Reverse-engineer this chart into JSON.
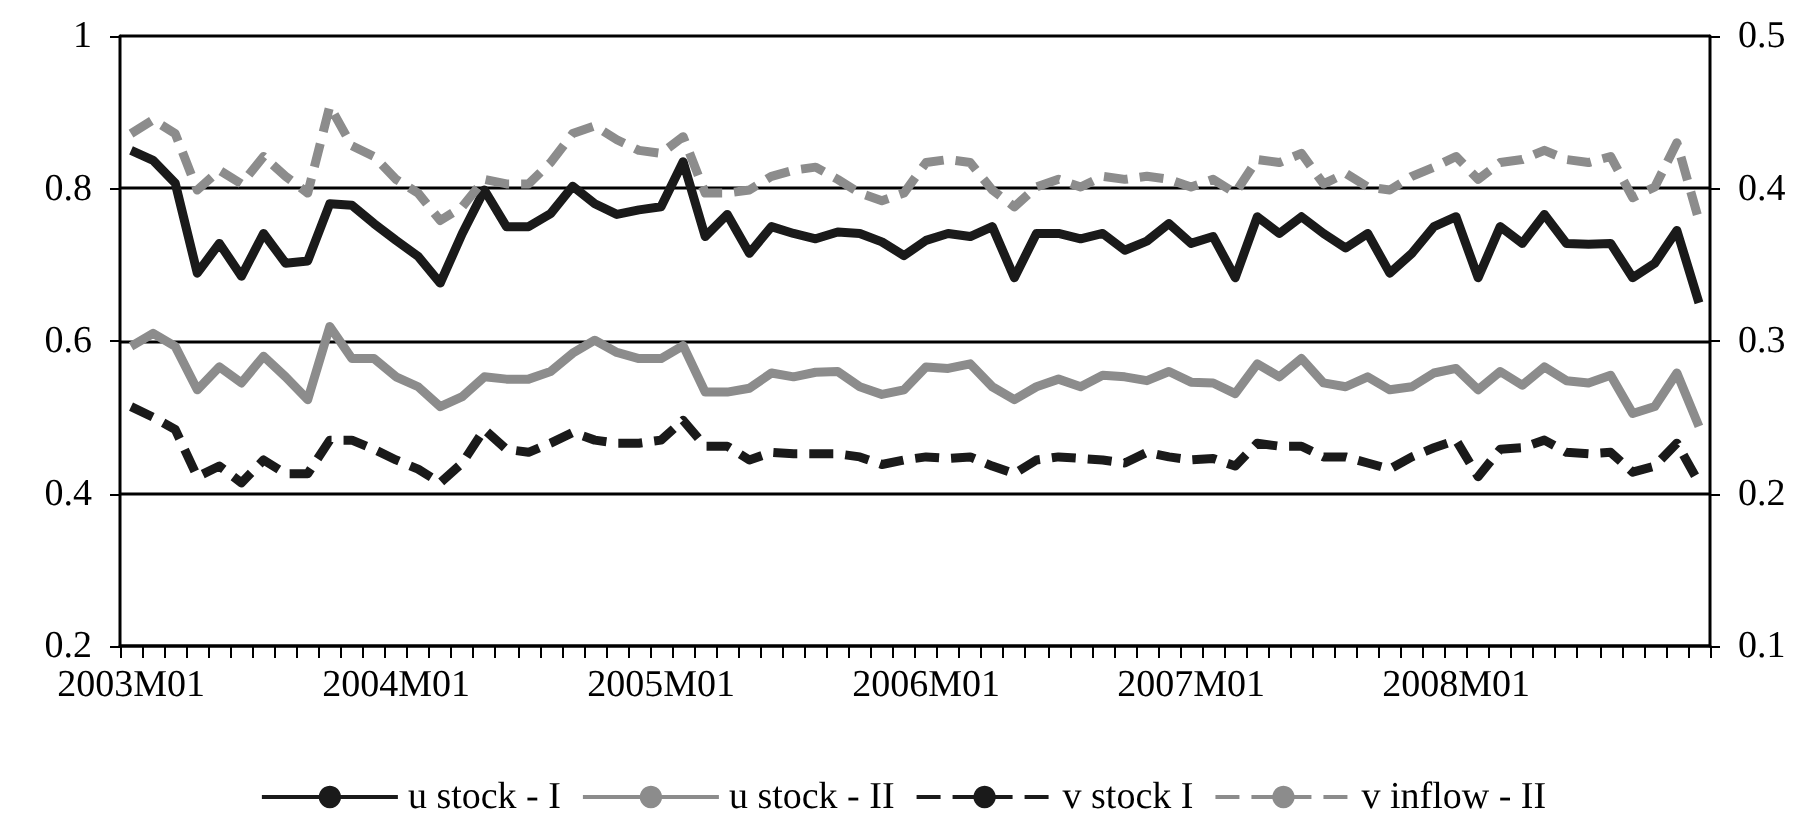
{
  "chart_data": {
    "type": "line",
    "categories": [
      "2003M01",
      null,
      null,
      null,
      null,
      null,
      null,
      null,
      null,
      null,
      null,
      null,
      "2004M01",
      null,
      null,
      null,
      null,
      null,
      null,
      null,
      null,
      null,
      null,
      null,
      "2005M01",
      null,
      null,
      null,
      null,
      null,
      null,
      null,
      null,
      null,
      null,
      null,
      "2006M01",
      null,
      null,
      null,
      null,
      null,
      null,
      null,
      null,
      null,
      null,
      null,
      "2007M01",
      null,
      null,
      null,
      null,
      null,
      null,
      null,
      null,
      null,
      null,
      null,
      "2008M01",
      null,
      null,
      null,
      null,
      null,
      null,
      null,
      null,
      null,
      null,
      null
    ],
    "series": [
      {
        "name": "u stock - I",
        "color": "#1a1a1a",
        "line_style": "solid",
        "values": [
          0.85,
          0.837,
          0.807,
          0.689,
          0.728,
          0.685,
          0.741,
          0.702,
          0.705,
          0.78,
          0.778,
          0.754,
          0.732,
          0.711,
          0.676,
          0.741,
          0.798,
          0.75,
          0.75,
          0.767,
          0.803,
          0.78,
          0.766,
          0.772,
          0.776,
          0.835,
          0.737,
          0.766,
          0.715,
          0.75,
          0.741,
          0.734,
          0.743,
          0.741,
          0.73,
          0.712,
          0.732,
          0.741,
          0.737,
          0.75,
          0.683,
          0.741,
          0.741,
          0.734,
          0.741,
          0.719,
          0.731,
          0.754,
          0.728,
          0.737,
          0.683,
          0.763,
          0.741,
          0.763,
          0.741,
          0.722,
          0.741,
          0.689,
          0.715,
          0.75,
          0.763,
          0.683,
          0.75,
          0.728,
          0.766,
          0.728,
          0.727,
          0.728,
          0.683,
          0.702,
          0.745,
          0.65
        ]
      },
      {
        "name": "u stock - II",
        "color": "#8c8c8c",
        "line_style": "solid",
        "values": [
          0.593,
          0.61,
          0.593,
          0.536,
          0.566,
          0.545,
          0.58,
          0.553,
          0.523,
          0.619,
          0.577,
          0.577,
          0.553,
          0.54,
          0.514,
          0.527,
          0.553,
          0.55,
          0.55,
          0.56,
          0.584,
          0.601,
          0.585,
          0.577,
          0.577,
          0.594,
          0.533,
          0.533,
          0.538,
          0.558,
          0.553,
          0.559,
          0.56,
          0.54,
          0.53,
          0.536,
          0.566,
          0.564,
          0.57,
          0.54,
          0.523,
          0.54,
          0.55,
          0.54,
          0.555,
          0.553,
          0.548,
          0.56,
          0.546,
          0.545,
          0.531,
          0.57,
          0.553,
          0.577,
          0.545,
          0.54,
          0.553,
          0.536,
          0.54,
          0.558,
          0.564,
          0.536,
          0.56,
          0.542,
          0.566,
          0.548,
          0.545,
          0.555,
          0.505,
          0.514,
          0.558,
          0.488
        ]
      },
      {
        "name": "v stock I",
        "color": "#1a1a1a",
        "line_style": "dashed",
        "axis": "y2",
        "values": [
          0.257,
          0.25,
          0.242,
          0.211,
          0.218,
          0.207,
          0.222,
          0.213,
          0.213,
          0.235,
          0.235,
          0.229,
          0.222,
          0.216,
          0.207,
          0.22,
          0.242,
          0.229,
          0.227,
          0.233,
          0.24,
          0.235,
          0.233,
          0.233,
          0.235,
          0.248,
          0.231,
          0.231,
          0.222,
          0.227,
          0.226,
          0.226,
          0.226,
          0.224,
          0.219,
          0.222,
          0.224,
          0.223,
          0.224,
          0.218,
          0.213,
          0.222,
          0.224,
          0.223,
          0.222,
          0.22,
          0.227,
          0.224,
          0.222,
          0.223,
          0.218,
          0.233,
          0.231,
          0.231,
          0.224,
          0.224,
          0.22,
          0.216,
          0.224,
          0.23,
          0.235,
          0.211,
          0.229,
          0.23,
          0.235,
          0.227,
          0.226,
          0.227,
          0.214,
          0.218,
          0.233,
          0.207
        ]
      },
      {
        "name": "v inflow - II",
        "color": "#8c8c8c",
        "line_style": "dashed",
        "axis": "y2",
        "values": [
          0.436,
          0.445,
          0.436,
          0.399,
          0.412,
          0.403,
          0.421,
          0.408,
          0.397,
          0.454,
          0.428,
          0.421,
          0.406,
          0.397,
          0.379,
          0.388,
          0.406,
          0.403,
          0.403,
          0.417,
          0.436,
          0.441,
          0.432,
          0.425,
          0.423,
          0.434,
          0.397,
          0.397,
          0.399,
          0.408,
          0.412,
          0.414,
          0.406,
          0.397,
          0.392,
          0.397,
          0.417,
          0.419,
          0.417,
          0.399,
          0.388,
          0.401,
          0.406,
          0.401,
          0.408,
          0.406,
          0.408,
          0.406,
          0.401,
          0.406,
          0.397,
          0.419,
          0.417,
          0.423,
          0.403,
          0.41,
          0.401,
          0.399,
          0.408,
          0.414,
          0.421,
          0.406,
          0.417,
          0.419,
          0.425,
          0.419,
          0.417,
          0.421,
          0.394,
          0.401,
          0.43,
          0.379
        ]
      }
    ],
    "ylim": [
      0.2,
      1
    ],
    "yticks": [
      0.2,
      0.4,
      0.6,
      0.8,
      1
    ],
    "y2lim": [
      0.1,
      0.5
    ],
    "y2ticks": [
      0.1,
      0.2,
      0.3,
      0.4,
      0.5
    ],
    "grid": "y",
    "legend": "bottom",
    "marker": "none"
  }
}
